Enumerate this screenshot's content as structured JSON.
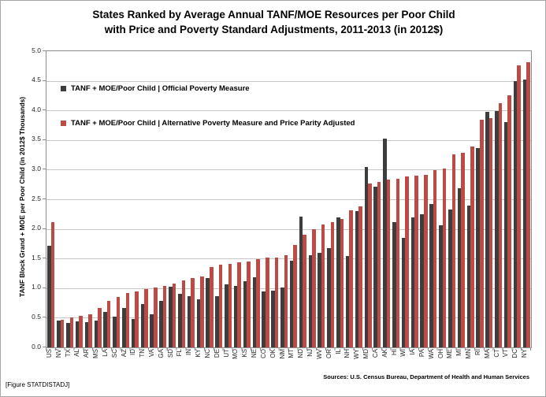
{
  "figure": {
    "title_line1": "States Ranked by Average Annual TANF/MOE Resources per Poor Child",
    "title_line2": "with Price and Poverty Standard Adjustments, 2011-2013 (in 2012$)",
    "footer_left": "[Figure STATDISTADJ]",
    "footer_right": "Sources: U.S. Census Bureau, Department of Health and Human Services"
  },
  "colors": {
    "official_series": "#3d3d3d",
    "alternative_series": "#bd4b45",
    "gridline": "#c6c6c6",
    "plot_border": "#8c8c8c",
    "background": "#ffffff"
  },
  "chart_data": {
    "type": "bar",
    "title": "States Ranked by Average Annual TANF/MOE Resources per Poor Child with Price and Poverty Standard Adjustments, 2011-2013 (in 2012$)",
    "ylabel": "TANF Block Grand + MOE per Poor Child (in 2012$ Thousands)",
    "xlabel": "",
    "ylim": [
      0,
      5
    ],
    "ytick_step": 0.5,
    "grid": true,
    "legend_position": "top-left-inside",
    "categories": [
      "US",
      "NV",
      "TX",
      "AL",
      "AR",
      "MS",
      "LA",
      "SC",
      "AZ",
      "ID",
      "TN",
      "VA",
      "GA",
      "SD",
      "FL",
      "IN",
      "KY",
      "NC",
      "DE",
      "UT",
      "MO",
      "KS",
      "NE",
      "CO",
      "OK",
      "NM",
      "MT",
      "ND",
      "NJ",
      "WV",
      "OR",
      "IL",
      "NH",
      "WY",
      "MD",
      "CA",
      "AK",
      "HI",
      "WI",
      "IA",
      "PA",
      "WA",
      "OH",
      "ME",
      "MI",
      "MN",
      "RI",
      "MA",
      "CT",
      "VT",
      "DC",
      "NY"
    ],
    "series": [
      {
        "name": "TANF + MOE/Poor Child | Official Poverty Measure",
        "color": "#3d3d3d",
        "values": [
          1.72,
          0.45,
          0.41,
          0.44,
          0.42,
          0.45,
          0.6,
          0.52,
          0.66,
          0.48,
          0.73,
          0.56,
          0.78,
          1.03,
          0.91,
          0.86,
          0.81,
          1.17,
          0.87,
          1.07,
          1.04,
          1.12,
          1.18,
          0.95,
          0.96,
          1.01,
          1.46,
          2.21,
          1.56,
          1.59,
          1.67,
          2.19,
          1.54,
          2.3,
          3.05,
          2.71,
          3.53,
          2.11,
          1.85,
          2.2,
          2.25,
          2.42,
          2.06,
          2.33,
          2.68,
          2.39,
          3.36,
          3.97,
          3.99,
          3.81,
          4.5,
          4.52
        ]
      },
      {
        "name": "TANF + MOE/Poor Child | Alternative Poverty Measure and Price Parity Adjusted",
        "color": "#bd4b45",
        "values": [
          2.12,
          0.46,
          0.5,
          0.53,
          0.56,
          0.67,
          0.79,
          0.85,
          0.92,
          0.94,
          0.98,
          1.01,
          1.04,
          1.08,
          1.13,
          1.17,
          1.2,
          1.35,
          1.39,
          1.41,
          1.43,
          1.45,
          1.49,
          1.51,
          1.52,
          1.55,
          1.73,
          1.9,
          2.0,
          2.08,
          2.12,
          2.17,
          2.31,
          2.38,
          2.76,
          2.79,
          2.83,
          2.85,
          2.89,
          2.9,
          2.91,
          2.99,
          3.02,
          3.26,
          3.28,
          3.39,
          3.84,
          3.87,
          4.12,
          4.26,
          4.76,
          4.82
        ]
      }
    ]
  }
}
